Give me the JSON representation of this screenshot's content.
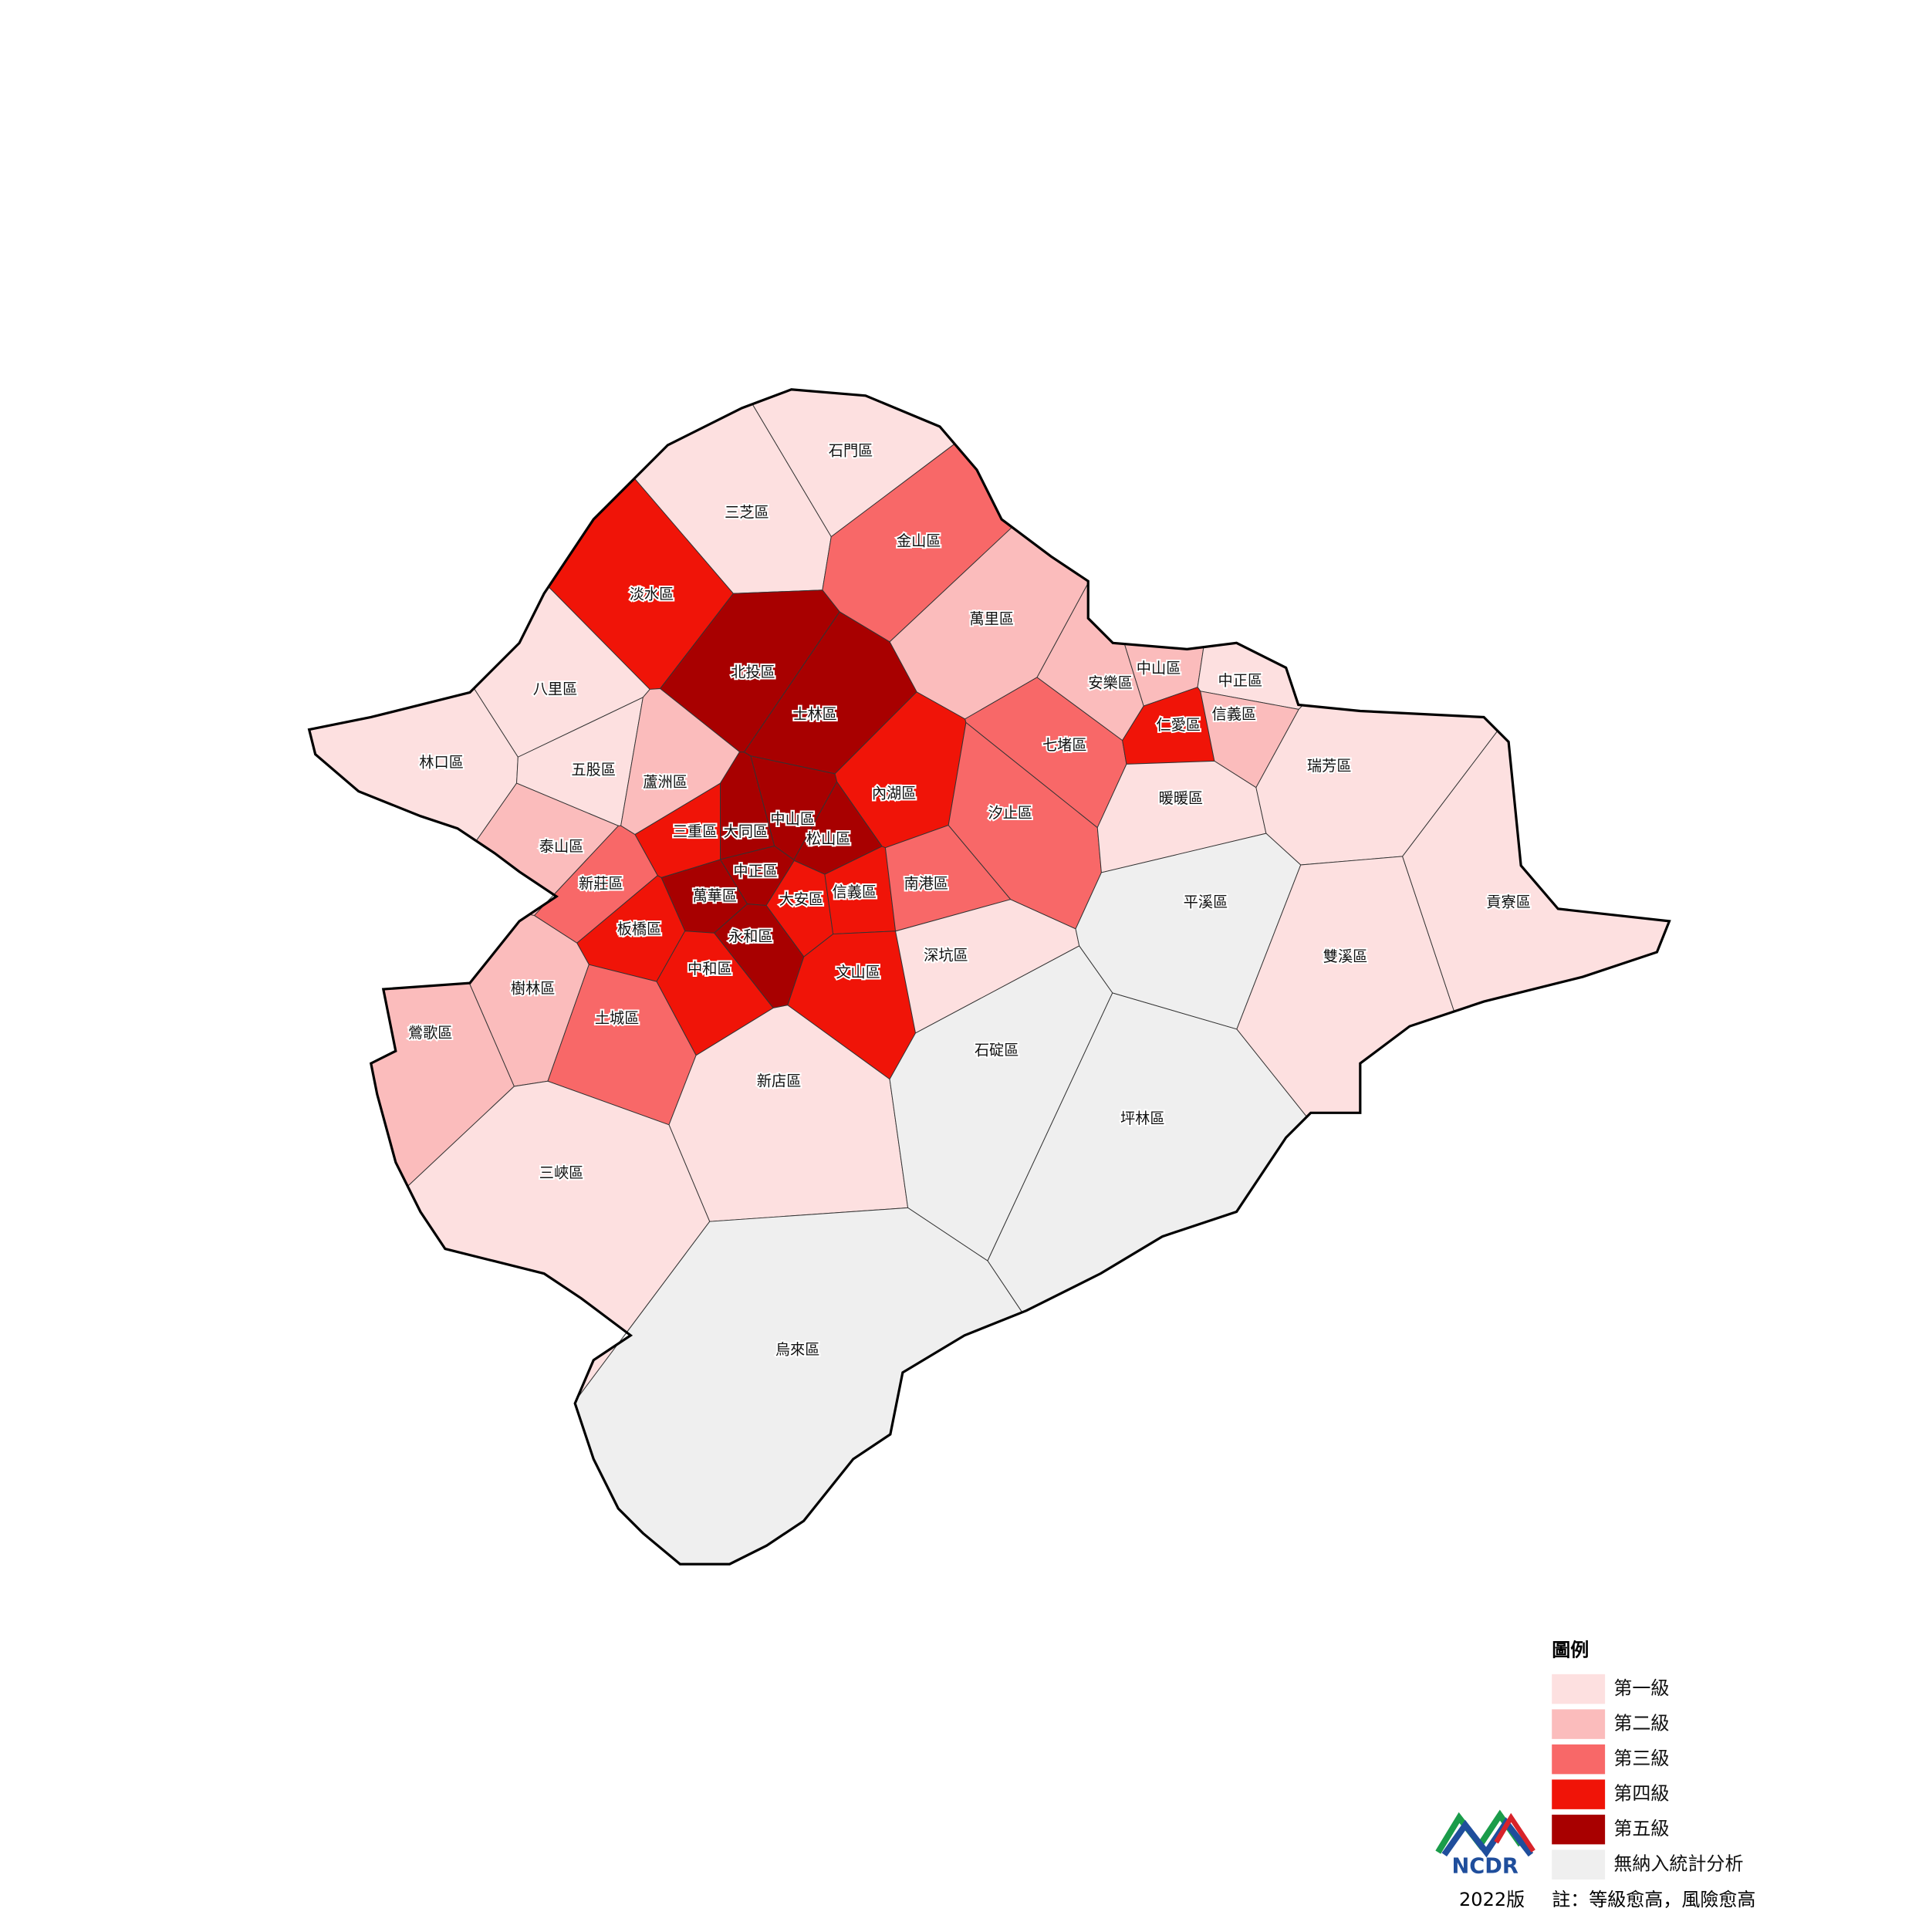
{
  "legend": {
    "title": "圖例",
    "items": [
      {
        "label": "第一級",
        "color": "#fde0e0"
      },
      {
        "label": "第二級",
        "color": "#fbbcbc"
      },
      {
        "label": "第三級",
        "color": "#f86868"
      },
      {
        "label": "第四級",
        "color": "#f01408"
      },
      {
        "label": "第五級",
        "color": "#a80000"
      },
      {
        "label": "無納入統計分析",
        "color": "#efefef"
      }
    ]
  },
  "logo": "NCDR",
  "footer": {
    "version": "2022版",
    "note": "註：等級愈高，風險愈高"
  },
  "districts": [
    {
      "name": "石門區",
      "color": "#fde0e0"
    },
    {
      "name": "三芝區",
      "color": "#fde0e0"
    },
    {
      "name": "金山區",
      "color": "#f86868"
    },
    {
      "name": "淡水區",
      "color": "#f01408"
    },
    {
      "name": "萬里區",
      "color": "#fbbcbc"
    },
    {
      "name": "北投區",
      "color": "#a80000"
    },
    {
      "name": "士林區",
      "color": "#a80000"
    },
    {
      "name": "八里區",
      "color": "#fde0e0"
    },
    {
      "name": "林口區",
      "color": "#fde0e0"
    },
    {
      "name": "五股區",
      "color": "#fde0e0"
    },
    {
      "name": "蘆洲區",
      "color": "#fbbcbc"
    },
    {
      "name": "內湖區",
      "color": "#f01408"
    },
    {
      "name": "三重區",
      "color": "#f01408"
    },
    {
      "name": "大同區",
      "color": "#a80000"
    },
    {
      "name": "中山區",
      "color": "#a80000"
    },
    {
      "name": "松山區",
      "color": "#a80000"
    },
    {
      "name": "泰山區",
      "color": "#fbbcbc"
    },
    {
      "name": "新莊區",
      "color": "#f86868"
    },
    {
      "name": "中正區",
      "color": "#a80000"
    },
    {
      "name": "萬華區",
      "color": "#a80000"
    },
    {
      "name": "大安區",
      "color": "#f01408"
    },
    {
      "name": "信義區",
      "color": "#f01408"
    },
    {
      "name": "南港區",
      "color": "#f86868"
    },
    {
      "name": "板橋區",
      "color": "#f01408"
    },
    {
      "name": "永和區",
      "color": "#a80000"
    },
    {
      "name": "中和區",
      "color": "#f01408"
    },
    {
      "name": "文山區",
      "color": "#f01408"
    },
    {
      "name": "深坑區",
      "color": "#fde0e0"
    },
    {
      "name": "樹林區",
      "color": "#fbbcbc"
    },
    {
      "name": "鶯歌區",
      "color": "#fbbcbc"
    },
    {
      "name": "土城區",
      "color": "#f86868"
    },
    {
      "name": "新店區",
      "color": "#fde0e0"
    },
    {
      "name": "石碇區",
      "color": "#efefef"
    },
    {
      "name": "坪林區",
      "color": "#efefef"
    },
    {
      "name": "三峽區",
      "color": "#fde0e0"
    },
    {
      "name": "烏來區",
      "color": "#efefef"
    },
    {
      "name": "汐止區",
      "color": "#f86868"
    },
    {
      "name": "七堵區",
      "color": "#f86868"
    },
    {
      "name": "安樂區",
      "color": "#fbbcbc"
    },
    {
      "name": "中山區",
      "color": "#fbbcbc"
    },
    {
      "name": "中正區",
      "color": "#fde0e0"
    },
    {
      "name": "仁愛區",
      "color": "#f01408"
    },
    {
      "name": "信義區",
      "color": "#fbbcbc"
    },
    {
      "name": "暖暖區",
      "color": "#fde0e0"
    },
    {
      "name": "瑞芳區",
      "color": "#fde0e0"
    },
    {
      "name": "平溪區",
      "color": "#efefef"
    },
    {
      "name": "雙溪區",
      "color": "#fde0e0"
    },
    {
      "name": "貢寮區",
      "color": "#fde0e0"
    }
  ]
}
